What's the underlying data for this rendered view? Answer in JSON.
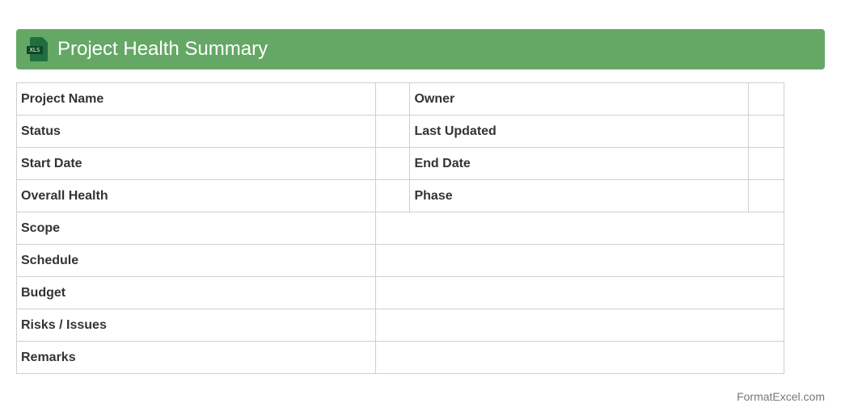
{
  "header": {
    "title": "Project Health Summary",
    "icon": "xls-file-icon",
    "icon_label": "XLS"
  },
  "table": {
    "pair_rows": [
      {
        "left": "Project Name",
        "right": "Owner"
      },
      {
        "left": "Status",
        "right": "Last Updated"
      },
      {
        "left": "Start Date",
        "right": "End Date"
      },
      {
        "left": "Overall Health",
        "right": "Phase"
      }
    ],
    "single_rows": [
      "Scope",
      "Schedule",
      "Budget",
      "Risks / Issues",
      "Remarks"
    ]
  },
  "footer": {
    "brand": "FormatExcel.com"
  }
}
